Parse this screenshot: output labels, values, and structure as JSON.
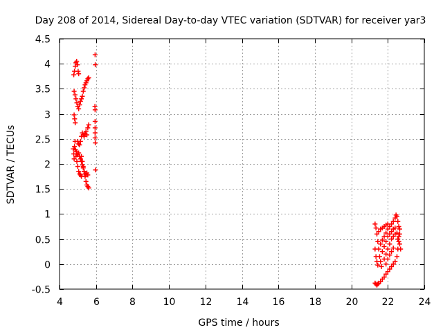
{
  "chart_data": {
    "type": "scatter",
    "title": "Day 208 of 2014, Sidereal Day-to-day VTEC variation (SDTVAR) for receiver yar3",
    "xlabel": "GPS time / hours",
    "ylabel": "SDTVAR / TECUs",
    "xlim": [
      4,
      24
    ],
    "ylim": [
      -0.5,
      4.5
    ],
    "x_ticks": [
      4,
      6,
      8,
      10,
      12,
      14,
      16,
      18,
      20,
      22,
      24
    ],
    "y_ticks": [
      -0.5,
      0,
      0.5,
      1,
      1.5,
      2,
      2.5,
      3,
      3.5,
      4,
      4.5
    ],
    "x_tick_labels": [
      "4",
      "6",
      "8",
      "10",
      "12",
      "14",
      "16",
      "18",
      "20",
      "22",
      "24"
    ],
    "y_tick_labels": [
      "-0.5",
      "0",
      "0.5",
      "1",
      "1.5",
      "2",
      "2.5",
      "3",
      "3.5",
      "4",
      "4.5"
    ],
    "grid": true,
    "marker": "+",
    "color": "#ff0000",
    "series": [
      {
        "name": "SDTVAR",
        "points": [
          [
            4.78,
            3.78
          ],
          [
            4.82,
            3.85
          ],
          [
            4.86,
            3.95
          ],
          [
            4.9,
            4.02
          ],
          [
            4.94,
            4.05
          ],
          [
            4.98,
            3.98
          ],
          [
            5.02,
            3.85
          ],
          [
            5.05,
            3.8
          ],
          [
            4.8,
            3.45
          ],
          [
            4.85,
            3.38
          ],
          [
            4.9,
            3.3
          ],
          [
            4.95,
            3.22
          ],
          [
            5.0,
            3.15
          ],
          [
            5.05,
            3.1
          ],
          [
            5.1,
            3.18
          ],
          [
            5.15,
            3.25
          ],
          [
            5.2,
            3.3
          ],
          [
            5.25,
            3.35
          ],
          [
            5.3,
            3.45
          ],
          [
            5.35,
            3.52
          ],
          [
            5.4,
            3.58
          ],
          [
            5.45,
            3.62
          ],
          [
            5.5,
            3.66
          ],
          [
            5.55,
            3.7
          ],
          [
            5.6,
            3.72
          ],
          [
            4.8,
            2.98
          ],
          [
            4.83,
            2.9
          ],
          [
            4.86,
            2.82
          ],
          [
            4.75,
            2.3
          ],
          [
            4.78,
            2.2
          ],
          [
            4.8,
            2.1
          ],
          [
            4.82,
            2.35
          ],
          [
            4.85,
            2.45
          ],
          [
            4.88,
            2.28
          ],
          [
            4.9,
            2.15
          ],
          [
            4.95,
            2.05
          ],
          [
            5.0,
            1.95
          ],
          [
            5.05,
            1.85
          ],
          [
            5.1,
            1.8
          ],
          [
            5.15,
            1.78
          ],
          [
            5.2,
            1.75
          ],
          [
            4.92,
            2.25
          ],
          [
            4.96,
            2.2
          ],
          [
            5.0,
            2.18
          ],
          [
            5.05,
            2.22
          ],
          [
            5.1,
            2.15
          ],
          [
            5.15,
            2.1
          ],
          [
            5.2,
            2.05
          ],
          [
            5.25,
            1.98
          ],
          [
            5.3,
            1.92
          ],
          [
            5.35,
            1.85
          ],
          [
            5.4,
            1.8
          ],
          [
            5.45,
            1.78
          ],
          [
            5.5,
            1.82
          ],
          [
            5.55,
            1.78
          ],
          [
            5.0,
            2.45
          ],
          [
            5.05,
            2.4
          ],
          [
            5.1,
            2.38
          ],
          [
            5.15,
            2.45
          ],
          [
            5.2,
            2.55
          ],
          [
            5.25,
            2.62
          ],
          [
            5.3,
            2.58
          ],
          [
            5.35,
            2.55
          ],
          [
            5.4,
            2.6
          ],
          [
            5.45,
            2.65
          ],
          [
            5.5,
            2.58
          ],
          [
            5.55,
            2.72
          ],
          [
            5.6,
            2.78
          ],
          [
            5.2,
            2.15
          ],
          [
            5.25,
            2.05
          ],
          [
            5.3,
            1.95
          ],
          [
            5.35,
            1.85
          ],
          [
            5.4,
            1.75
          ],
          [
            5.45,
            1.65
          ],
          [
            5.5,
            1.58
          ],
          [
            5.55,
            1.55
          ],
          [
            5.6,
            1.52
          ],
          [
            5.95,
            4.18
          ],
          [
            5.96,
            3.98
          ],
          [
            5.94,
            3.15
          ],
          [
            5.95,
            3.08
          ],
          [
            5.95,
            2.85
          ],
          [
            5.95,
            2.72
          ],
          [
            5.95,
            2.62
          ],
          [
            5.95,
            2.52
          ],
          [
            5.96,
            2.42
          ],
          [
            5.97,
            1.88
          ],
          [
            21.3,
            0.8
          ],
          [
            21.35,
            0.72
          ],
          [
            21.4,
            0.6
          ],
          [
            21.45,
            0.45
          ],
          [
            21.5,
            0.3
          ],
          [
            21.55,
            0.15
          ],
          [
            21.6,
            0.05
          ],
          [
            21.65,
            -0.05
          ],
          [
            21.3,
            0.3
          ],
          [
            21.35,
            0.15
          ],
          [
            21.4,
            0.05
          ],
          [
            21.45,
            -0.02
          ],
          [
            21.3,
            -0.38
          ],
          [
            21.35,
            -0.4
          ],
          [
            21.4,
            -0.42
          ],
          [
            21.45,
            -0.4
          ],
          [
            21.5,
            -0.38
          ],
          [
            21.6,
            -0.35
          ],
          [
            21.7,
            -0.3
          ],
          [
            21.8,
            -0.26
          ],
          [
            21.9,
            -0.2
          ],
          [
            22.0,
            -0.15
          ],
          [
            22.1,
            -0.1
          ],
          [
            22.2,
            -0.05
          ],
          [
            22.3,
            0.0
          ],
          [
            22.4,
            0.05
          ],
          [
            22.5,
            0.15
          ],
          [
            22.55,
            0.3
          ],
          [
            22.6,
            0.45
          ],
          [
            22.65,
            0.6
          ],
          [
            21.6,
            0.4
          ],
          [
            21.7,
            0.48
          ],
          [
            21.8,
            0.55
          ],
          [
            21.9,
            0.62
          ],
          [
            22.0,
            0.7
          ],
          [
            22.1,
            0.75
          ],
          [
            22.2,
            0.8
          ],
          [
            22.3,
            0.85
          ],
          [
            22.4,
            0.92
          ],
          [
            22.45,
            0.98
          ],
          [
            22.5,
            0.95
          ],
          [
            22.55,
            0.85
          ],
          [
            22.6,
            0.75
          ],
          [
            22.65,
            0.7
          ],
          [
            21.7,
            0.25
          ],
          [
            21.8,
            0.35
          ],
          [
            21.9,
            0.45
          ],
          [
            22.0,
            0.55
          ],
          [
            22.1,
            0.6
          ],
          [
            22.2,
            0.65
          ],
          [
            22.3,
            0.7
          ],
          [
            22.4,
            0.72
          ],
          [
            21.8,
            0.1
          ],
          [
            21.9,
            0.2
          ],
          [
            22.0,
            0.3
          ],
          [
            22.1,
            0.4
          ],
          [
            22.2,
            0.5
          ],
          [
            22.3,
            0.55
          ],
          [
            22.4,
            0.6
          ],
          [
            22.5,
            0.62
          ],
          [
            21.9,
            0.0
          ],
          [
            22.0,
            0.1
          ],
          [
            22.1,
            0.18
          ],
          [
            22.2,
            0.25
          ],
          [
            22.3,
            0.32
          ],
          [
            21.5,
            0.65
          ],
          [
            21.6,
            0.7
          ],
          [
            21.7,
            0.72
          ],
          [
            21.8,
            0.75
          ],
          [
            21.9,
            0.78
          ],
          [
            22.0,
            0.8
          ],
          [
            22.55,
            0.5
          ],
          [
            22.6,
            0.55
          ],
          [
            22.65,
            0.4
          ],
          [
            22.7,
            0.3
          ]
        ]
      }
    ]
  }
}
